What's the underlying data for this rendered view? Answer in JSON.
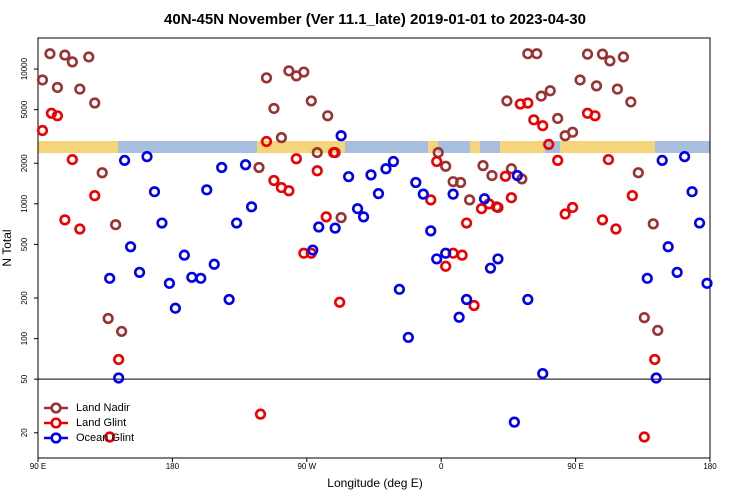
{
  "chart_data": {
    "type": "scatter",
    "title": "40N-45N November (Ver 11.1_late)   2019-01-01 to 2023-04-30",
    "x_label": "Longitude (deg E)",
    "y_label": "N Total",
    "xlim": [
      90,
      540
    ],
    "xticks": [
      {
        "value": 90,
        "label": "90 E"
      },
      {
        "value": 180,
        "label": "180"
      },
      {
        "value": 270,
        "label": "90 W"
      },
      {
        "value": 360,
        "label": "0"
      },
      {
        "value": 450,
        "label": "90 E"
      },
      {
        "value": 540,
        "label": "180"
      }
    ],
    "ylim": [
      13,
      17000
    ],
    "log_y": true,
    "yticks": [
      20,
      50,
      100,
      200,
      500,
      1000,
      2000,
      5000,
      10000
    ],
    "hline": 50,
    "legend": "lower left",
    "grid": false,
    "series": [
      {
        "name": "Land Nadir",
        "color": "#993333",
        "x": [
          93,
          98,
          103,
          108,
          113,
          118,
          124,
          128,
          133,
          137,
          142,
          146,
          238,
          243,
          248,
          253,
          258,
          263,
          268,
          273,
          277,
          284,
          289,
          293,
          358,
          363,
          368,
          373,
          379,
          388,
          394,
          397,
          404,
          407,
          414,
          418,
          424,
          427,
          433,
          438,
          443,
          448,
          453,
          458,
          464,
          468,
          473,
          478,
          482,
          487,
          492,
          496,
          502,
          505
        ],
        "values": [
          8300,
          13000,
          7300,
          12700,
          11300,
          7100,
          12300,
          5600,
          1700,
          141,
          700,
          113,
          1860,
          8600,
          5100,
          3100,
          9700,
          8900,
          9500,
          5800,
          2400,
          4500,
          2400,
          790,
          2400,
          1900,
          1460,
          1440,
          1070,
          1920,
          1620,
          950,
          5800,
          1820,
          1530,
          13000,
          13000,
          6300,
          6900,
          4300,
          3200,
          3400,
          8300,
          12900,
          7500,
          12900,
          11500,
          7100,
          12300,
          5700,
          1700,
          143,
          710,
          115
        ]
      },
      {
        "name": "Land Glint",
        "color": "#ee0000",
        "x": [
          93,
          99,
          103,
          108,
          113,
          118,
          128,
          138,
          144,
          239,
          243,
          248,
          253,
          258,
          263,
          268,
          273,
          277,
          283,
          288,
          292,
          353,
          357,
          363,
          368,
          374,
          377,
          382,
          387,
          392,
          398,
          403,
          407,
          413,
          418,
          422,
          428,
          432,
          438,
          443,
          448,
          458,
          463,
          468,
          472,
          477,
          488,
          496,
          503
        ],
        "values": [
          3500,
          4700,
          4500,
          760,
          2130,
          650,
          1150,
          18.6,
          70,
          27.5,
          2900,
          1490,
          1320,
          1250,
          2160,
          430,
          430,
          1760,
          800,
          2400,
          186,
          1070,
          2060,
          344,
          430,
          416,
          720,
          176,
          920,
          1000,
          940,
          1600,
          1110,
          5500,
          5600,
          4200,
          3800,
          2760,
          2100,
          840,
          940,
          4700,
          4500,
          760,
          2130,
          650,
          1150,
          18.6,
          70
        ]
      },
      {
        "name": "Ocean Glint",
        "color": "#0000ee",
        "x": [
          138,
          144,
          148,
          152,
          158,
          163,
          168,
          173,
          178,
          182,
          188,
          193,
          199,
          203,
          208,
          213,
          218,
          223,
          229,
          233,
          274,
          278,
          289,
          293,
          298,
          304,
          308,
          313,
          318,
          323,
          328,
          332,
          338,
          343,
          348,
          353,
          357,
          363,
          368,
          372,
          377,
          389,
          393,
          398,
          409,
          411,
          418,
          428,
          498,
          504,
          508,
          512,
          518,
          523,
          528,
          533,
          538
        ],
        "values": [
          280,
          51,
          2100,
          480,
          310,
          2240,
          1230,
          720,
          257,
          168,
          416,
          285,
          280,
          1270,
          356,
          1860,
          195,
          720,
          1950,
          950,
          454,
          673,
          660,
          3200,
          1590,
          920,
          800,
          1640,
          1190,
          1820,
          2060,
          232,
          102,
          1440,
          1180,
          630,
          390,
          430,
          1180,
          144,
          195,
          1090,
          333,
          390,
          24,
          1620,
          195,
          55,
          280,
          51,
          2100,
          480,
          310,
          2240,
          1230,
          720,
          257
        ]
      }
    ]
  }
}
